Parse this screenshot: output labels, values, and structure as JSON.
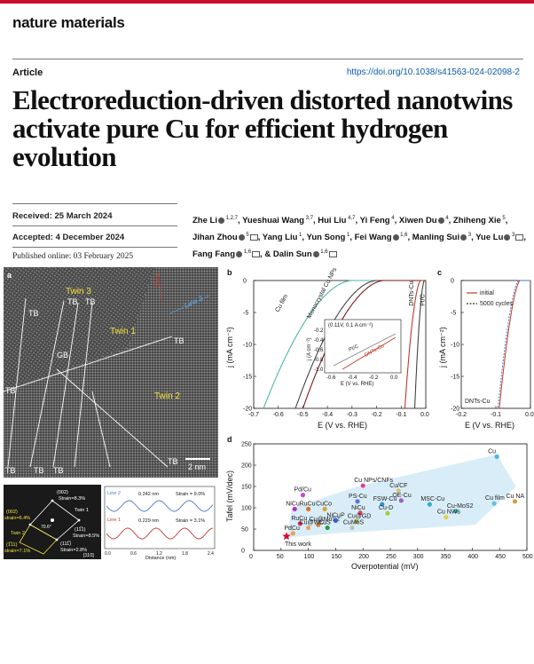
{
  "journal": "nature materials",
  "article_type": "Article",
  "doi": "https://doi.org/10.1038/s41563-024-02098-2",
  "title": "Electroreduction-driven distorted nanotwins activate pure Cu for efficient hydrogen evolution",
  "received": "Received: 25 March 2024",
  "accepted": "Accepted: 4 December 2024",
  "published": "Published online: 03 February 2025",
  "authors": [
    {
      "name": "Zhe Li",
      "sup": "1,2,7",
      "orcid": true,
      "mail": false
    },
    {
      "name": "Yueshuai Wang",
      "sup": "3,7",
      "orcid": false,
      "mail": false
    },
    {
      "name": "Hui Liu",
      "sup": "4,7",
      "orcid": false,
      "mail": false
    },
    {
      "name": "Yi Feng",
      "sup": "4",
      "orcid": false,
      "mail": false
    },
    {
      "name": "Xiwen Du",
      "sup": "4",
      "orcid": true,
      "mail": false
    },
    {
      "name": "Zhiheng Xie",
      "sup": "5",
      "orcid": false,
      "mail": false
    },
    {
      "name": "Jihan Zhou",
      "sup": "5",
      "orcid": true,
      "mail": true
    },
    {
      "name": "Yang Liu",
      "sup": "1",
      "orcid": false,
      "mail": false
    },
    {
      "name": "Yun Song",
      "sup": "1",
      "orcid": false,
      "mail": false
    },
    {
      "name": "Fei Wang",
      "sup": "1,6",
      "orcid": true,
      "mail": false
    },
    {
      "name": "Manling Sui",
      "sup": "3",
      "orcid": true,
      "mail": false
    },
    {
      "name": "Yue Lu",
      "sup": "3",
      "orcid": true,
      "mail": true
    },
    {
      "name": "Fang Fang",
      "sup": "1,6",
      "orcid": true,
      "mail": true
    },
    {
      "name": "& Dalin Sun",
      "sup": "1,6",
      "orcid": true,
      "mail": true
    }
  ],
  "figure": {
    "panel_a": {
      "label": "a",
      "twin_labels": [
        "Twin 3",
        "Twin 1",
        "Twin 2"
      ],
      "tb_label": "TB",
      "gb_label": "GB",
      "line1": "Line 1",
      "line2": "Line 2",
      "scalebar": "2 nm",
      "fft_labels": [
        "(002)",
        "Strain=8.3%",
        "Twin 1",
        "(002)",
        "strain=6.4%",
        "(11̅1)",
        "Strain=8.5%",
        "Twin 2",
        "(1̅11)",
        "strain=7.1%",
        "(111̅)",
        "Strain=2.8%",
        "[110]",
        "70.6°"
      ],
      "profile": {
        "line2": "Line 2",
        "line1": "Line 1",
        "d2": "0.242 nm",
        "s2": "Strain = 9.0%",
        "d1": "0.229 nm",
        "s1": "Strain = 3.1%",
        "xlabel": "Distance (nm)",
        "xticks": [
          "0.0",
          "0.6",
          "1.2",
          "1.8",
          "2.4"
        ]
      }
    },
    "chart_data": [
      {
        "panel": "b",
        "type": "line",
        "xlabel": "E (V vs. RHE)",
        "ylabel": "j (mA cm⁻²)",
        "xlim": [
          -0.7,
          0.0
        ],
        "ylim": [
          -20,
          0
        ],
        "xticks": [
          "-0.7",
          "-0.6",
          "-0.5",
          "-0.4",
          "-0.3",
          "-0.2",
          "-0.1",
          "0.0"
        ],
        "yticks": [
          "0",
          "-5",
          "-10",
          "-15",
          "-20"
        ],
        "series": [
          {
            "name": "Cu film",
            "color": "#4fb6a8",
            "onset": -0.3,
            "e20": -0.66
          },
          {
            "name": "Monocrystal Cu NPs",
            "color": "#444444",
            "onset": -0.2,
            "e20": -0.53
          },
          {
            "name": "",
            "color": "#7a1a1a",
            "onset": -0.17,
            "e20": -0.5
          },
          {
            "name": "DNTs-Cu",
            "color": "#c0392b",
            "onset": -0.02,
            "e20": -0.085
          },
          {
            "name": "Pt/C",
            "color": "#444444",
            "onset": -0.005,
            "e20": -0.045
          }
        ],
        "inset": {
          "label": "(0.11V, 0.1 A cm⁻²)",
          "xlabel": "E (V vs. RHE)",
          "ylabel": "j (A cm⁻²)",
          "xticks": [
            "-0.6",
            "-0.4",
            "-0.2",
            "0.0"
          ],
          "yticks": [
            "-0.2",
            "-0.4",
            "-0.6",
            "-0.8",
            "-1.0"
          ],
          "series": [
            "Pt/C",
            "DNTs-Cu"
          ]
        }
      },
      {
        "panel": "c",
        "type": "line",
        "xlabel": "E (V vs. RHE)",
        "ylabel": "j (mA cm⁻²)",
        "xlim": [
          -0.2,
          0.0
        ],
        "ylim": [
          -20,
          0
        ],
        "xticks": [
          "-0.2",
          "-0.1",
          "0.0"
        ],
        "yticks": [
          "0",
          "-5",
          "-10",
          "-15",
          "-20"
        ],
        "series": [
          {
            "name": "initial",
            "color": "#c0392b"
          },
          {
            "name": "5000 cycles",
            "color": "#4a78c8"
          }
        ],
        "annotation": "DNTs-Cu"
      },
      {
        "panel": "d",
        "type": "scatter",
        "xlabel": "Overpotential (mV)",
        "ylabel": "Tafel (mV/dec)",
        "xlim": [
          0,
          500
        ],
        "ylim": [
          0,
          250
        ],
        "xticks": [
          "0",
          "50",
          "100",
          "150",
          "200",
          "250",
          "300",
          "350",
          "400",
          "450",
          "500"
        ],
        "yticks": [
          "0",
          "50",
          "100",
          "150",
          "200",
          "250"
        ],
        "points": [
          {
            "label": "Cu",
            "x": 445,
            "y": 220,
            "color": "#4db6e0"
          },
          {
            "label": "Cu NPs/CNFs",
            "x": 200,
            "y": 152,
            "color": "#e0409a"
          },
          {
            "label": "Cu/CF",
            "x": 265,
            "y": 140,
            "color": "#d9c46a"
          },
          {
            "label": "Pd/Cu",
            "x": 90,
            "y": 130,
            "color": "#c050d0"
          },
          {
            "label": "PS-Cu",
            "x": 190,
            "y": 115,
            "color": "#6070e0"
          },
          {
            "label": "OE-Cu",
            "x": 270,
            "y": 117,
            "color": "#a060c0"
          },
          {
            "label": "FSW-Cu",
            "x": 235,
            "y": 108,
            "color": "#3090d0"
          },
          {
            "label": "MSC-Cu",
            "x": 322,
            "y": 108,
            "color": "#30b0c0"
          },
          {
            "label": "Cu film",
            "x": 440,
            "y": 110,
            "color": "#60c0e0"
          },
          {
            "label": "Cu NA",
            "x": 478,
            "y": 115,
            "color": "#d0a040"
          },
          {
            "label": "NiCu",
            "x": 75,
            "y": 97,
            "color": "#b030c0"
          },
          {
            "label": "RuCu",
            "x": 100,
            "y": 97,
            "color": "#e07020"
          },
          {
            "label": "CuCo",
            "x": 130,
            "y": 97,
            "color": "#e0a030"
          },
          {
            "label": "NiCu",
            "x": 195,
            "y": 88,
            "color": "#e04060"
          },
          {
            "label": "Cu-D",
            "x": 245,
            "y": 87,
            "color": "#a0d040"
          },
          {
            "label": "Cu-MoS2",
            "x": 370,
            "y": 92,
            "color": "#30c0c0"
          },
          {
            "label": "Cu NWs",
            "x": 352,
            "y": 78,
            "color": "#e0d040"
          },
          {
            "label": "RuCu",
            "x": 85,
            "y": 63,
            "color": "#d03050"
          },
          {
            "label": "Cu@MoS2",
            "x": 118,
            "y": 60,
            "color": "#d08030"
          },
          {
            "label": "NiCuP",
            "x": 150,
            "y": 70,
            "color": "#3060d0"
          },
          {
            "label": "Cu@GD",
            "x": 188,
            "y": 68,
            "color": "#a0b040"
          },
          {
            "label": "Cu@WC",
            "x": 100,
            "y": 53,
            "color": "#f0a060"
          },
          {
            "label": "CuS",
            "x": 135,
            "y": 53,
            "color": "#20a040"
          },
          {
            "label": "CuMoS",
            "x": 180,
            "y": 53,
            "color": "#c0c0c0"
          },
          {
            "label": "PdCu",
            "x": 72,
            "y": 40,
            "color": "#f0a040"
          },
          {
            "label": "This work",
            "x": 60,
            "y": 33,
            "color": "#d01030",
            "marker": "star"
          }
        ]
      }
    ]
  }
}
